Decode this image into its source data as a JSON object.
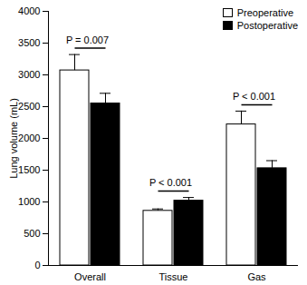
{
  "chart_data": {
    "type": "bar",
    "categories": [
      "Overall",
      "Tissue",
      "Gas"
    ],
    "y_label": "Lung volume (mL)",
    "series": [
      {
        "name": "Preoperative",
        "color": "#ffffff",
        "values": [
          3070,
          860,
          2220
        ],
        "errors": [
          250,
          30,
          210
        ]
      },
      {
        "name": "Postoperative",
        "color": "#000000",
        "values": [
          2550,
          1020,
          1530
        ],
        "errors": [
          160,
          50,
          120
        ]
      }
    ],
    "ylim": [
      0,
      4000
    ],
    "yticks": [
      0,
      500,
      1000,
      1500,
      2000,
      2500,
      3000,
      3500,
      4000
    ],
    "legend": "top-right",
    "annotations": [
      {
        "category": "Overall",
        "text": "P = 0.007"
      },
      {
        "category": "Tissue",
        "text": "P < 0.001"
      },
      {
        "category": "Gas",
        "text": "P < 0.001"
      }
    ]
  }
}
